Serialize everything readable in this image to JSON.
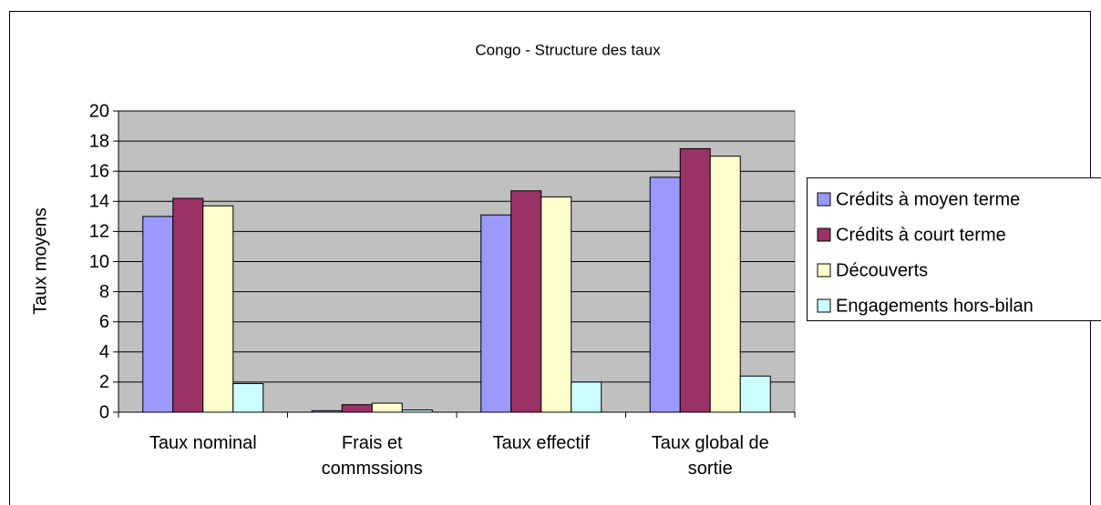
{
  "chart_data": {
    "type": "bar",
    "title": "Congo - Structure des taux",
    "ylabel": "Taux moyens",
    "categories": [
      "Taux nominal",
      "Frais et commssions",
      "Taux effectif",
      "Taux global de sortie"
    ],
    "series": [
      {
        "name": "Crédits à moyen terme",
        "color": "#9999ff",
        "values": [
          13.0,
          0.1,
          13.1,
          15.6
        ]
      },
      {
        "name": "Crédits à court terme",
        "color": "#993366",
        "values": [
          14.2,
          0.5,
          14.7,
          17.5
        ]
      },
      {
        "name": "Découverts",
        "color": "#ffffcc",
        "values": [
          13.7,
          0.6,
          14.3,
          17.0
        ]
      },
      {
        "name": "Engagements hors-bilan",
        "color": "#ccffff",
        "values": [
          1.9,
          0.15,
          2.0,
          2.4
        ]
      }
    ],
    "ylim": [
      0,
      20
    ],
    "yticks": [
      0,
      2,
      4,
      6,
      8,
      10,
      12,
      14,
      16,
      18,
      20
    ],
    "grid": true,
    "plot_background": "#c0c0c0",
    "legend": "right"
  }
}
